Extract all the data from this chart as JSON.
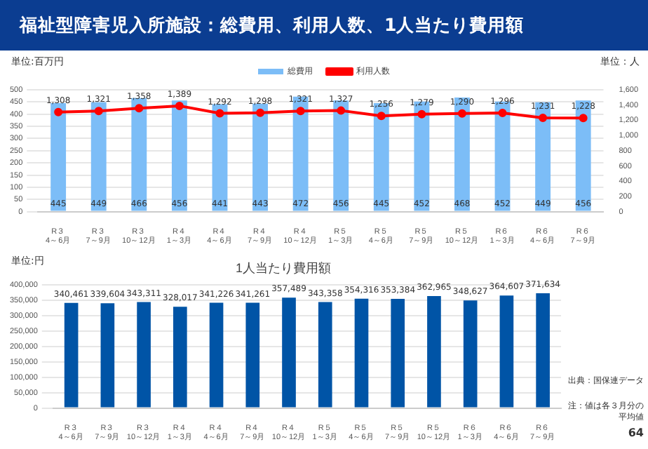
{
  "chart_data": [
    {
      "type": "bar",
      "title": "福祉型障害児入所施設：総費用、利用人数、1人当たり費用額",
      "ylabel": "単位:百万円",
      "y2label": "単位：人",
      "categories": [
        "R３\n4～6月",
        "R３\n7～9月",
        "R３\n10～12月",
        "R４\n1～3月",
        "R４\n4～6月",
        "R４\n7～9月",
        "R４\n10～12月",
        "R５\n1～3月",
        "R５\n4～6月",
        "R５\n7～9月",
        "R５\n10～12月",
        "R６\n1～3月",
        "R６\n4～6月",
        "R６\n7～9月"
      ],
      "series": [
        {
          "name": "総費用",
          "type": "bar",
          "color": "#7cbdf7",
          "values": [
            445,
            449,
            466,
            456,
            441,
            443,
            472,
            456,
            445,
            452,
            468,
            452,
            449,
            456
          ],
          "value_labels": [
            "445",
            "449",
            "466",
            "456",
            "441",
            "443",
            "472",
            "456",
            "445",
            "452",
            "468",
            "452",
            "449",
            "456"
          ]
        },
        {
          "name": "利用人数",
          "type": "line",
          "axis": "y2",
          "color": "#ff0000",
          "values": [
            1308,
            1321,
            1358,
            1389,
            1292,
            1298,
            1321,
            1327,
            1256,
            1279,
            1290,
            1296,
            1231,
            1228
          ],
          "value_labels": [
            "1,308",
            "1,321",
            "1,358",
            "1,389",
            "1,292",
            "1,298",
            "1,321",
            "1,327",
            "1,256",
            "1,279",
            "1,290",
            "1,296",
            "1,231",
            "1,228"
          ]
        }
      ],
      "ylim": [
        0,
        500
      ],
      "yticks": [
        0,
        50,
        100,
        150,
        200,
        250,
        300,
        350,
        400,
        450,
        500
      ],
      "y2lim": [
        0,
        1600
      ],
      "y2ticks": [
        0,
        200,
        400,
        600,
        800,
        {
          "value": 1000,
          "label": "1,000"
        },
        {
          "value": 1200,
          "label": "1,200"
        },
        {
          "value": 1400,
          "label": "1,400"
        },
        {
          "value": 1600,
          "label": "1,600"
        }
      ],
      "grid": "y",
      "legend": "top",
      "marker": "circle"
    },
    {
      "type": "bar",
      "title": "1人当たり費用額",
      "ylabel": "単位:円",
      "categories": [
        "R３\n4～6月",
        "R３\n7～9月",
        "R３\n10～12月",
        "R４\n1～3月",
        "R４\n4～6月",
        "R４\n7～9月",
        "R４\n10～12月",
        "R５\n1～3月",
        "R５\n4～6月",
        "R５\n7～9月",
        "R５\n10～12月",
        "R６\n1～3月",
        "R６\n4～6月",
        "R６\n7～9月"
      ],
      "values": [
        340461,
        339604,
        343311,
        328017,
        341226,
        341261,
        357489,
        343358,
        354316,
        353384,
        362965,
        348627,
        364607,
        371634
      ],
      "value_labels": [
        "340,461",
        "339,604",
        "343,311",
        "328,017",
        "341,226",
        "341,261",
        "357,489",
        "343,358",
        "354,316",
        "353,384",
        "362,965",
        "348,627",
        "364,607",
        "371,634"
      ],
      "color": "#0054a6",
      "ylim": [
        0,
        400000
      ],
      "yticks": [
        0,
        {
          "value": 50000,
          "label": "50,000"
        },
        {
          "value": 100000,
          "label": "100,000"
        },
        {
          "value": 150000,
          "label": "150,000"
        },
        {
          "value": 200000,
          "label": "200,000"
        },
        {
          "value": 250000,
          "label": "250,000"
        },
        {
          "value": 300000,
          "label": "300,000"
        },
        {
          "value": 350000,
          "label": "350,000"
        },
        {
          "value": 400000,
          "label": "400,000"
        }
      ],
      "grid": "y",
      "annotations": [
        "出典：国保連データ",
        "注：値は各３月分の平均値",
        "64"
      ]
    }
  ]
}
